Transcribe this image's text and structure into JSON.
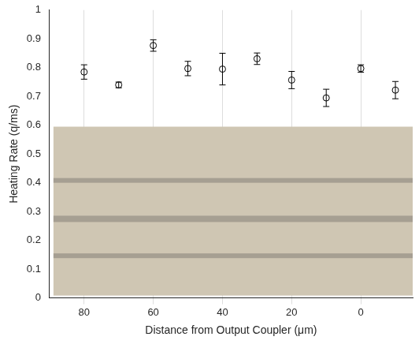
{
  "chart_data": {
    "type": "scatter",
    "x_label": "Distance from Output Coupler (μm)",
    "y_label": "Heating Rate (q/ms)",
    "x": [
      80,
      70,
      60,
      50,
      40,
      30,
      20,
      10,
      0,
      -10
    ],
    "values": [
      0.785,
      0.74,
      0.877,
      0.797,
      0.795,
      0.831,
      0.757,
      0.695,
      0.797,
      0.722
    ],
    "errors": [
      0.025,
      0.01,
      0.02,
      0.025,
      0.055,
      0.02,
      0.03,
      0.03,
      0.013,
      0.03
    ],
    "color": "#000000",
    "marker": "hollow_circle",
    "xlim": [
      90,
      -15
    ],
    "xticks": [
      80,
      60,
      40,
      20,
      0
    ],
    "ylim": [
      0,
      1
    ],
    "yticks": [
      0,
      0.1,
      0.2,
      0.3,
      0.4,
      0.5,
      0.6,
      0.7,
      0.8,
      0.9,
      1
    ],
    "grid": "x"
  }
}
